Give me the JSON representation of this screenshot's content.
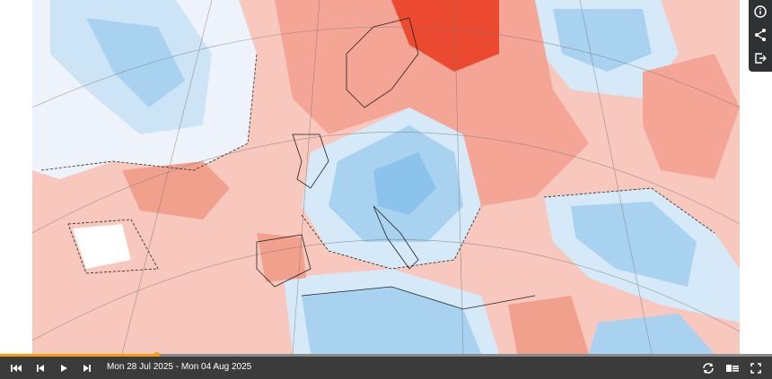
{
  "player": {
    "date_range": "Mon 28 Jul 2025 - Mon 04 Aug 2025"
  }
}
